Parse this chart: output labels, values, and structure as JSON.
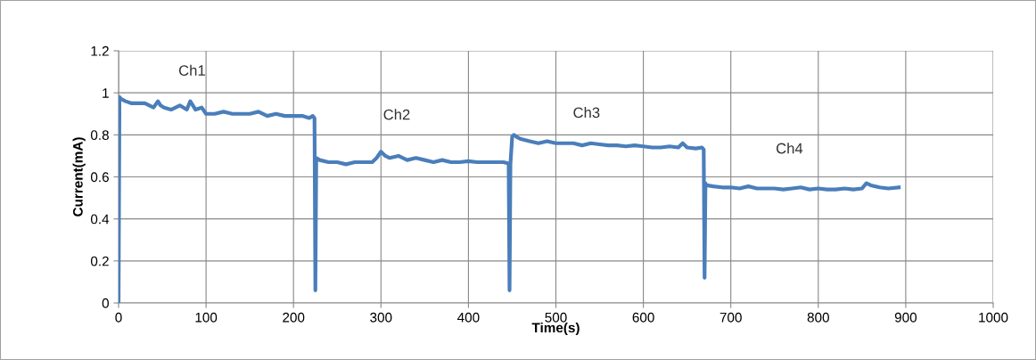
{
  "chart_data": {
    "type": "line",
    "xlabel": "Time(s)",
    "ylabel": "Current(mA)",
    "x": [
      0,
      1,
      3,
      8,
      15,
      22,
      30,
      40,
      45,
      48,
      52,
      60,
      70,
      78,
      82,
      88,
      95,
      100,
      110,
      120,
      130,
      140,
      150,
      160,
      170,
      180,
      190,
      200,
      210,
      218,
      222,
      224,
      225,
      226,
      230,
      240,
      250,
      260,
      270,
      280,
      290,
      295,
      300,
      305,
      310,
      320,
      330,
      340,
      350,
      360,
      370,
      380,
      390,
      400,
      410,
      420,
      430,
      440,
      445,
      446,
      447,
      448,
      450,
      452,
      455,
      460,
      470,
      480,
      490,
      500,
      510,
      520,
      530,
      540,
      550,
      560,
      570,
      580,
      590,
      600,
      610,
      620,
      630,
      640,
      645,
      650,
      660,
      667,
      669,
      670,
      671,
      672,
      680,
      690,
      700,
      710,
      720,
      730,
      740,
      750,
      760,
      770,
      780,
      790,
      800,
      810,
      820,
      830,
      840,
      850,
      855,
      860,
      870,
      880,
      892
    ],
    "values": [
      0,
      0.98,
      0.97,
      0.96,
      0.95,
      0.95,
      0.95,
      0.93,
      0.96,
      0.94,
      0.93,
      0.92,
      0.94,
      0.92,
      0.96,
      0.92,
      0.93,
      0.9,
      0.9,
      0.91,
      0.9,
      0.9,
      0.9,
      0.91,
      0.89,
      0.9,
      0.89,
      0.89,
      0.89,
      0.88,
      0.89,
      0.88,
      0.06,
      0.69,
      0.68,
      0.67,
      0.67,
      0.66,
      0.67,
      0.67,
      0.67,
      0.69,
      0.72,
      0.7,
      0.69,
      0.7,
      0.68,
      0.69,
      0.68,
      0.67,
      0.68,
      0.67,
      0.67,
      0.675,
      0.67,
      0.67,
      0.67,
      0.67,
      0.665,
      0.66,
      0.06,
      0.66,
      0.79,
      0.8,
      0.79,
      0.78,
      0.77,
      0.76,
      0.77,
      0.76,
      0.76,
      0.76,
      0.75,
      0.76,
      0.755,
      0.75,
      0.75,
      0.745,
      0.75,
      0.745,
      0.74,
      0.74,
      0.745,
      0.74,
      0.76,
      0.74,
      0.735,
      0.74,
      0.73,
      0.12,
      0.57,
      0.56,
      0.555,
      0.55,
      0.55,
      0.545,
      0.555,
      0.545,
      0.545,
      0.545,
      0.54,
      0.545,
      0.55,
      0.54,
      0.545,
      0.54,
      0.54,
      0.545,
      0.54,
      0.545,
      0.57,
      0.56,
      0.55,
      0.545,
      0.55
    ],
    "color": "#4a7ebb",
    "xlim": [
      0,
      1000
    ],
    "xticks": [
      0,
      100,
      200,
      300,
      400,
      500,
      600,
      700,
      800,
      900,
      1000
    ],
    "ylim": [
      0,
      1.2
    ],
    "yticks": [
      {
        "value": 0,
        "label": "0"
      },
      0.2,
      0.4,
      0.6,
      0.8,
      {
        "value": 1,
        "label": "1"
      },
      1.2
    ],
    "grid": true,
    "marker": "none",
    "line_style": "solid",
    "annotations": [
      "Ch1",
      "Ch2",
      "Ch3",
      "Ch4"
    ]
  }
}
